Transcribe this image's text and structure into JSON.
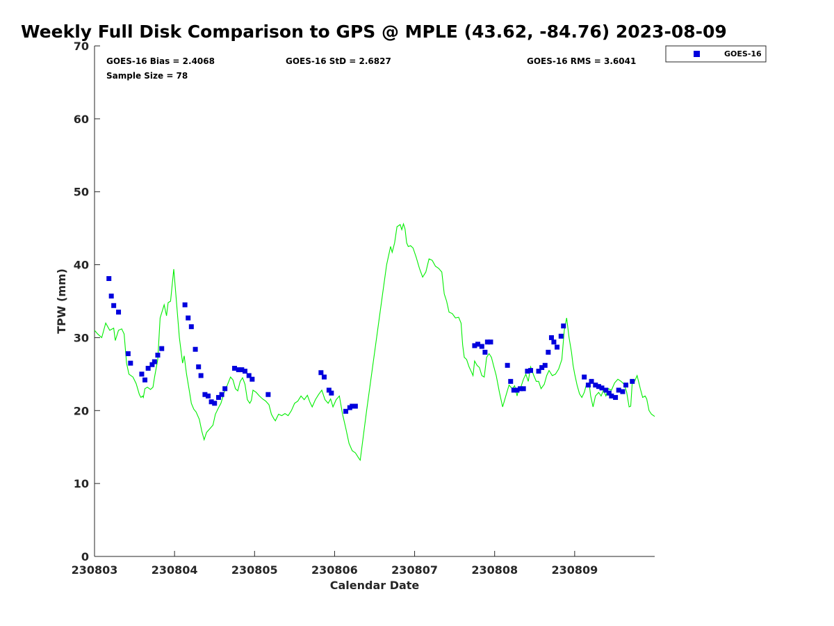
{
  "chart_data": {
    "type": "scatter",
    "title": "Weekly Full Disk Comparison to GPS @ MPLE (43.62, -84.76) 2023-08-09",
    "xlabel": "Calendar Date",
    "ylabel": "TPW (mm)",
    "xlim": [
      0,
      7
    ],
    "ylim": [
      0,
      70
    ],
    "yticks": [
      0,
      10,
      20,
      30,
      40,
      50,
      60,
      70
    ],
    "xticks": [
      {
        "value": 0,
        "label": "230803"
      },
      {
        "value": 1,
        "label": "230804"
      },
      {
        "value": 2,
        "label": "230805"
      },
      {
        "value": 3,
        "label": "230806"
      },
      {
        "value": 4,
        "label": "230807"
      },
      {
        "value": 5,
        "label": "230808"
      },
      {
        "value": 6,
        "label": "230809"
      }
    ],
    "stats": {
      "bias": "GOES-16 Bias = 2.4068",
      "std": "GOES-16 StD = 2.6827",
      "rms": "GOES-16 RMS = 3.6041",
      "sample": "Sample Size = 78"
    },
    "legend": {
      "position": "top-right outside",
      "entries": [
        "GOES-16"
      ]
    },
    "series": [
      {
        "name": "GPS",
        "kind": "line",
        "color": "#00ee00",
        "points": [
          [
            0,
            31.0
          ],
          [
            0.04,
            30.5
          ],
          [
            0.09,
            30.0
          ],
          [
            0.14,
            32.0
          ],
          [
            0.19,
            31.0
          ],
          [
            0.24,
            31.3
          ],
          [
            0.26,
            29.6
          ],
          [
            0.3,
            31.0
          ],
          [
            0.34,
            31.2
          ],
          [
            0.37,
            30.5
          ],
          [
            0.4,
            26.5
          ],
          [
            0.43,
            25.0
          ],
          [
            0.48,
            24.6
          ],
          [
            0.52,
            23.7
          ],
          [
            0.56,
            22.2
          ],
          [
            0.58,
            21.8
          ],
          [
            0.6,
            22.0
          ],
          [
            0.61,
            21.8
          ],
          [
            0.63,
            23.0
          ],
          [
            0.66,
            23.2
          ],
          [
            0.7,
            22.9
          ],
          [
            0.73,
            23.2
          ],
          [
            0.75,
            24.6
          ],
          [
            0.77,
            25.8
          ],
          [
            0.79,
            27.0
          ],
          [
            0.82,
            32.7
          ],
          [
            0.87,
            34.5
          ],
          [
            0.9,
            33.0
          ],
          [
            0.92,
            34.8
          ],
          [
            0.95,
            35.0
          ],
          [
            0.99,
            39.4
          ],
          [
            1.02,
            35.5
          ],
          [
            1.06,
            30.0
          ],
          [
            1.1,
            26.5
          ],
          [
            1.12,
            27.5
          ],
          [
            1.15,
            25.0
          ],
          [
            1.18,
            23.0
          ],
          [
            1.21,
            21.0
          ],
          [
            1.24,
            20.2
          ],
          [
            1.27,
            19.8
          ],
          [
            1.31,
            18.8
          ],
          [
            1.34,
            17.2
          ],
          [
            1.37,
            16.0
          ],
          [
            1.4,
            17.0
          ],
          [
            1.44,
            17.5
          ],
          [
            1.48,
            18.0
          ],
          [
            1.51,
            19.5
          ],
          [
            1.55,
            20.4
          ],
          [
            1.58,
            21.0
          ],
          [
            1.62,
            22.5
          ],
          [
            1.66,
            23.5
          ],
          [
            1.7,
            24.6
          ],
          [
            1.73,
            24.2
          ],
          [
            1.76,
            23.0
          ],
          [
            1.79,
            22.7
          ],
          [
            1.82,
            24.0
          ],
          [
            1.85,
            24.5
          ],
          [
            1.88,
            23.6
          ],
          [
            1.91,
            21.5
          ],
          [
            1.94,
            21.0
          ],
          [
            1.96,
            21.4
          ],
          [
            1.98,
            22.8
          ],
          [
            2.02,
            22.5
          ],
          [
            2.06,
            22.0
          ],
          [
            2.1,
            21.6
          ],
          [
            2.14,
            21.3
          ],
          [
            2.18,
            20.8
          ],
          [
            2.21,
            19.5
          ],
          [
            2.24,
            18.9
          ],
          [
            2.26,
            18.6
          ],
          [
            2.3,
            19.5
          ],
          [
            2.34,
            19.3
          ],
          [
            2.38,
            19.6
          ],
          [
            2.42,
            19.3
          ],
          [
            2.46,
            20.0
          ],
          [
            2.5,
            21.0
          ],
          [
            2.54,
            21.3
          ],
          [
            2.58,
            22.0
          ],
          [
            2.62,
            21.5
          ],
          [
            2.66,
            22.1
          ],
          [
            2.69,
            21.2
          ],
          [
            2.72,
            20.5
          ],
          [
            2.76,
            21.5
          ],
          [
            2.8,
            22.2
          ],
          [
            2.84,
            22.8
          ],
          [
            2.88,
            21.5
          ],
          [
            2.92,
            21.0
          ],
          [
            2.95,
            21.6
          ],
          [
            2.98,
            20.5
          ],
          [
            3.02,
            21.5
          ],
          [
            3.06,
            22.0
          ],
          [
            3.1,
            19.5
          ],
          [
            3.14,
            17.6
          ],
          [
            3.18,
            15.5
          ],
          [
            3.22,
            14.5
          ],
          [
            3.26,
            14.2
          ],
          [
            3.3,
            13.5
          ],
          [
            3.32,
            13.2
          ],
          [
            3.4,
            20.0
          ],
          [
            3.5,
            28.0
          ],
          [
            3.6,
            36.0
          ],
          [
            3.65,
            40.0
          ],
          [
            3.7,
            42.5
          ],
          [
            3.72,
            41.7
          ],
          [
            3.75,
            43.0
          ],
          [
            3.78,
            45.2
          ],
          [
            3.82,
            45.5
          ],
          [
            3.84,
            44.8
          ],
          [
            3.86,
            45.6
          ],
          [
            3.88,
            44.9
          ],
          [
            3.9,
            43.0
          ],
          [
            3.92,
            42.5
          ],
          [
            3.95,
            42.6
          ],
          [
            3.98,
            42.3
          ],
          [
            4.02,
            41.0
          ],
          [
            4.06,
            39.5
          ],
          [
            4.1,
            38.3
          ],
          [
            4.14,
            39.0
          ],
          [
            4.18,
            40.8
          ],
          [
            4.22,
            40.6
          ],
          [
            4.26,
            39.8
          ],
          [
            4.3,
            39.5
          ],
          [
            4.34,
            39.0
          ],
          [
            4.37,
            36.0
          ],
          [
            4.4,
            35.0
          ],
          [
            4.43,
            33.5
          ],
          [
            4.47,
            33.3
          ],
          [
            4.51,
            32.7
          ],
          [
            4.55,
            32.8
          ],
          [
            4.58,
            32.0
          ],
          [
            4.6,
            29.0
          ],
          [
            4.62,
            27.3
          ],
          [
            4.65,
            27.0
          ],
          [
            4.68,
            26.0
          ],
          [
            4.71,
            25.3
          ],
          [
            4.73,
            24.8
          ],
          [
            4.75,
            26.8
          ],
          [
            4.78,
            26.2
          ],
          [
            4.81,
            25.9
          ],
          [
            4.84,
            24.8
          ],
          [
            4.87,
            24.6
          ],
          [
            4.9,
            27.3
          ],
          [
            4.93,
            27.8
          ],
          [
            4.96,
            27.3
          ],
          [
            4.99,
            26.0
          ],
          [
            5.02,
            24.8
          ],
          [
            5.06,
            22.5
          ],
          [
            5.1,
            20.5
          ],
          [
            5.14,
            22.0
          ],
          [
            5.18,
            23.5
          ],
          [
            5.22,
            23.0
          ],
          [
            5.25,
            23.4
          ],
          [
            5.28,
            22.0
          ],
          [
            5.3,
            23.0
          ],
          [
            5.33,
            23.3
          ],
          [
            5.36,
            24.3
          ],
          [
            5.39,
            25.0
          ],
          [
            5.42,
            24.0
          ],
          [
            5.45,
            26.0
          ],
          [
            5.49,
            24.8
          ],
          [
            5.52,
            24.0
          ],
          [
            5.55,
            24.0
          ],
          [
            5.58,
            23.0
          ],
          [
            5.62,
            23.6
          ],
          [
            5.65,
            24.8
          ],
          [
            5.68,
            25.5
          ],
          [
            5.72,
            24.8
          ],
          [
            5.76,
            25.0
          ],
          [
            5.8,
            25.7
          ],
          [
            5.84,
            27.0
          ],
          [
            5.87,
            31.0
          ],
          [
            5.9,
            32.7
          ],
          [
            5.93,
            30.0
          ],
          [
            5.96,
            28.0
          ],
          [
            5.98,
            26.2
          ],
          [
            6.0,
            25.0
          ],
          [
            6.03,
            23.5
          ],
          [
            6.06,
            22.3
          ],
          [
            6.09,
            21.8
          ],
          [
            6.12,
            22.5
          ],
          [
            6.15,
            23.7
          ],
          [
            6.18,
            23.8
          ],
          [
            6.2,
            22.0
          ],
          [
            6.23,
            20.5
          ],
          [
            6.26,
            22.0
          ],
          [
            6.3,
            22.5
          ],
          [
            6.33,
            22.0
          ],
          [
            6.36,
            22.8
          ],
          [
            6.39,
            22.0
          ],
          [
            6.42,
            23.0
          ],
          [
            6.46,
            22.8
          ],
          [
            6.5,
            23.8
          ],
          [
            6.54,
            24.3
          ],
          [
            6.58,
            24.0
          ],
          [
            6.62,
            23.6
          ],
          [
            6.65,
            22.5
          ],
          [
            6.68,
            20.5
          ],
          [
            6.7,
            20.6
          ],
          [
            6.72,
            24.0
          ],
          [
            6.74,
            23.8
          ],
          [
            6.78,
            24.8
          ],
          [
            6.82,
            23.0
          ],
          [
            6.85,
            21.8
          ],
          [
            6.88,
            22.0
          ],
          [
            6.9,
            21.6
          ],
          [
            6.93,
            20.0
          ],
          [
            6.96,
            19.5
          ],
          [
            7.0,
            19.2
          ]
        ]
      },
      {
        "name": "GOES-16",
        "kind": "scatter",
        "color": "#0000dd",
        "points": [
          [
            0.18,
            38.1
          ],
          [
            0.21,
            35.7
          ],
          [
            0.24,
            34.4
          ],
          [
            0.3,
            33.5
          ],
          [
            0.42,
            27.8
          ],
          [
            0.45,
            26.5
          ],
          [
            0.59,
            25.0
          ],
          [
            0.63,
            24.2
          ],
          [
            0.67,
            25.8
          ],
          [
            0.72,
            26.3
          ],
          [
            0.75,
            26.7
          ],
          [
            0.79,
            27.6
          ],
          [
            0.84,
            28.5
          ],
          [
            1.13,
            34.5
          ],
          [
            1.17,
            32.7
          ],
          [
            1.21,
            31.5
          ],
          [
            1.26,
            28.4
          ],
          [
            1.3,
            26.0
          ],
          [
            1.33,
            24.8
          ],
          [
            1.38,
            22.2
          ],
          [
            1.42,
            22.0
          ],
          [
            1.46,
            21.2
          ],
          [
            1.5,
            21.0
          ],
          [
            1.55,
            21.8
          ],
          [
            1.59,
            22.2
          ],
          [
            1.63,
            23.0
          ],
          [
            1.75,
            25.8
          ],
          [
            1.8,
            25.6
          ],
          [
            1.84,
            25.6
          ],
          [
            1.88,
            25.4
          ],
          [
            1.93,
            24.8
          ],
          [
            1.97,
            24.3
          ],
          [
            2.17,
            22.2
          ],
          [
            2.83,
            25.2
          ],
          [
            2.87,
            24.6
          ],
          [
            2.93,
            22.8
          ],
          [
            2.96,
            22.4
          ],
          [
            3.14,
            19.9
          ],
          [
            3.19,
            20.4
          ],
          [
            3.22,
            20.6
          ],
          [
            3.26,
            20.6
          ],
          [
            4.75,
            28.9
          ],
          [
            4.79,
            29.1
          ],
          [
            4.84,
            28.8
          ],
          [
            4.88,
            28.0
          ],
          [
            4.91,
            29.4
          ],
          [
            4.95,
            29.4
          ],
          [
            5.16,
            26.2
          ],
          [
            5.2,
            24.0
          ],
          [
            5.24,
            22.8
          ],
          [
            5.28,
            22.8
          ],
          [
            5.32,
            23.0
          ],
          [
            5.36,
            23.0
          ],
          [
            5.41,
            25.4
          ],
          [
            5.45,
            25.5
          ],
          [
            5.55,
            25.4
          ],
          [
            5.59,
            25.9
          ],
          [
            5.63,
            26.2
          ],
          [
            5.67,
            28.0
          ],
          [
            5.71,
            30.0
          ],
          [
            5.74,
            29.4
          ],
          [
            5.78,
            28.7
          ],
          [
            5.83,
            30.2
          ],
          [
            5.86,
            31.6
          ],
          [
            6.12,
            24.6
          ],
          [
            6.17,
            23.5
          ],
          [
            6.21,
            24.0
          ],
          [
            6.26,
            23.5
          ],
          [
            6.3,
            23.3
          ],
          [
            6.34,
            23.1
          ],
          [
            6.39,
            22.8
          ],
          [
            6.43,
            22.4
          ],
          [
            6.46,
            22.0
          ],
          [
            6.51,
            21.8
          ],
          [
            6.55,
            22.8
          ],
          [
            6.6,
            22.6
          ],
          [
            6.64,
            23.5
          ],
          [
            6.72,
            24.0
          ]
        ]
      }
    ]
  }
}
